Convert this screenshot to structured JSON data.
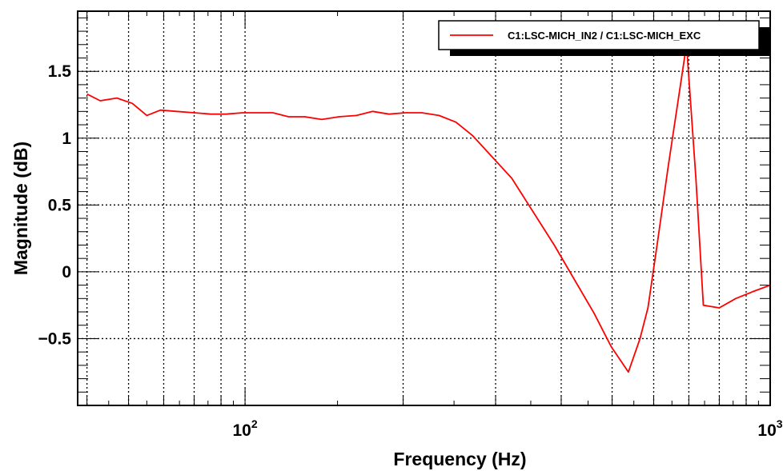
{
  "chart_data": {
    "type": "line",
    "title": "",
    "xlabel": "Frequency (Hz)",
    "ylabel": "Magnitude (dB)",
    "x_scale": "log",
    "xlim": [
      48,
      1000
    ],
    "ylim": [
      -1.0,
      1.95
    ],
    "grid": true,
    "legend_position": "top-right",
    "x_tick_labels": [
      {
        "value": 100,
        "base": "10",
        "exp": "2"
      },
      {
        "value": 1000,
        "base": "10",
        "exp": "3"
      }
    ],
    "y_ticks": [
      {
        "value": 1.5,
        "label": "1.5"
      },
      {
        "value": 1.0,
        "label": "1"
      },
      {
        "value": 0.5,
        "label": "0.5"
      },
      {
        "value": 0.0,
        "label": "0"
      },
      {
        "value": -0.5,
        "label": "−0.5"
      }
    ],
    "series": [
      {
        "name": "C1:LSC-MICH_IN2 / C1:LSC-MICH_EXC",
        "color": "#ff0000",
        "x": [
          50,
          53,
          57,
          61,
          65,
          69,
          74,
          80,
          86,
          92,
          99,
          106,
          113,
          121,
          130,
          140,
          151,
          163,
          175,
          188,
          202,
          217,
          234,
          252,
          271,
          322,
          388,
          462,
          498,
          537,
          565,
          585,
          609,
          640,
          693,
          722,
          746,
          800,
          860,
          925,
          1000
        ],
        "y": [
          1.33,
          1.28,
          1.3,
          1.26,
          1.17,
          1.21,
          1.2,
          1.19,
          1.18,
          1.18,
          1.19,
          1.19,
          1.19,
          1.16,
          1.16,
          1.14,
          1.16,
          1.17,
          1.2,
          1.18,
          1.19,
          1.19,
          1.17,
          1.12,
          1.02,
          0.7,
          0.2,
          -0.31,
          -0.56,
          -0.75,
          -0.5,
          -0.27,
          0.2,
          0.8,
          1.7,
          0.7,
          -0.25,
          -0.27,
          -0.2,
          -0.15,
          -0.1
        ]
      }
    ]
  }
}
